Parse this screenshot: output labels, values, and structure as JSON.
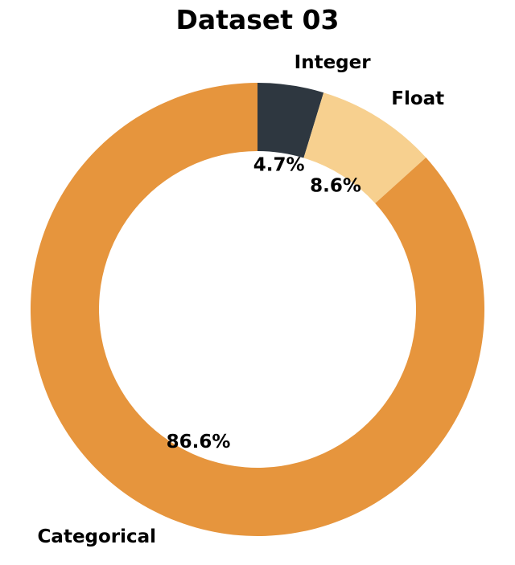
{
  "chart_data": {
    "type": "pie",
    "donut": true,
    "title": "Dataset 03",
    "legend": "none",
    "slices": [
      {
        "label": "Integer",
        "value": 4.7,
        "pct_label": "4.7%",
        "color": "#2e3740"
      },
      {
        "label": "Float",
        "value": 8.6,
        "pct_label": "8.6%",
        "color": "#f7d08f"
      },
      {
        "label": "Categorical",
        "value": 86.6,
        "pct_label": "86.6%",
        "color": "#e6953d"
      }
    ]
  }
}
